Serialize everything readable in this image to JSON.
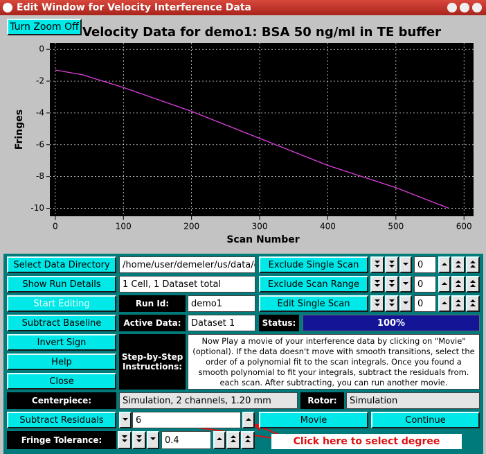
{
  "window": {
    "title": "Edit Window for Velocity Interference Data"
  },
  "zoom_button": "Turn Zoom Off",
  "chart_data": {
    "type": "line",
    "title": "Velocity Data for demo1: BSA 50 ng/ml in TE buffer",
    "x_label": "Scan Number",
    "y_label": "Fringes",
    "x": [
      0,
      40,
      100,
      200,
      300,
      400,
      500,
      578
    ],
    "values": [
      -1.3,
      -1.6,
      -2.4,
      -3.9,
      -5.6,
      -7.3,
      -8.7,
      -10.0
    ],
    "color": "#e040e0",
    "xlim": [
      -8,
      614
    ],
    "ylim": [
      -10.5,
      0.4
    ],
    "xticks": [
      0,
      100,
      200,
      300,
      400,
      500,
      600
    ],
    "yticks": [
      0,
      -2,
      -4,
      -6,
      -8,
      -10
    ],
    "grid": true
  },
  "controls": {
    "select_directory": "Select Data Directory",
    "directory": "/home/user/demeler/us/data/c",
    "show_run_details": "Show Run Details",
    "run_details": "1 Cell, 1 Dataset total",
    "start_editing": "Start Editing",
    "run_id_label": "Run Id:",
    "run_id": "demo1",
    "subtract_baseline": "Subtract Baseline",
    "active_data_label": "Active Data:",
    "active_data": "Dataset 1",
    "invert_sign": "Invert Sign",
    "help": "Help",
    "close": "Close",
    "instructions_label": "Step-by-Step Instructions:",
    "instructions": "Now Play a movie of your interference data by clicking on \"Movie\" (optional). If the data doesn't move with smooth transitions, select the order of a polynomial fit to the scan integrals. Once you found a smooth polynomial to fit your integrals, subtract the residuals from. each scan. After subtracting, you can run another movie.",
    "exclude_single_scan": "Exclude Single Scan",
    "exclude_single_value": "0",
    "exclude_scan_range": "Exclude Scan Range",
    "exclude_range_value": "0",
    "edit_single_scan": "Edit Single Scan",
    "edit_single_value": "0",
    "status_label": "Status:",
    "status": "100%",
    "centerpiece_label": "Centerpiece:",
    "centerpiece": "Simulation, 2 channels, 1.20 mm",
    "rotor_label": "Rotor:",
    "rotor": "Simulation",
    "subtract_residuals": "Subtract Residuals",
    "degree": "6",
    "movie": "Movie",
    "continue": "Continue",
    "fringe_tolerance_label": "Fringe Tolerance:",
    "fringe_tolerance": "0.4",
    "annotation": "Click here to select degree"
  }
}
